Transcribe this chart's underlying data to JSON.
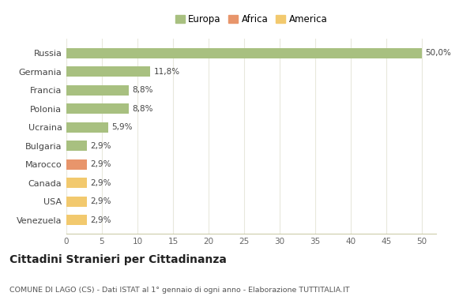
{
  "categories": [
    "Venezuela",
    "USA",
    "Canada",
    "Marocco",
    "Bulgaria",
    "Ucraina",
    "Polonia",
    "Francia",
    "Germania",
    "Russia"
  ],
  "values": [
    2.9,
    2.9,
    2.9,
    2.9,
    2.9,
    5.9,
    8.8,
    8.8,
    11.8,
    50.0
  ],
  "colors": [
    "#f2c96e",
    "#f2c96e",
    "#f2c96e",
    "#e8956b",
    "#a8c080",
    "#a8c080",
    "#a8c080",
    "#a8c080",
    "#a8c080",
    "#a8c080"
  ],
  "labels": [
    "2,9%",
    "2,9%",
    "2,9%",
    "2,9%",
    "2,9%",
    "5,9%",
    "8,8%",
    "8,8%",
    "11,8%",
    "50,0%"
  ],
  "legend": [
    {
      "label": "Europa",
      "color": "#a8c080"
    },
    {
      "label": "Africa",
      "color": "#e8956b"
    },
    {
      "label": "America",
      "color": "#f2c96e"
    }
  ],
  "title": "Cittadini Stranieri per Cittadinanza",
  "subtitle": "COMUNE DI LAGO (CS) - Dati ISTAT al 1° gennaio di ogni anno - Elaborazione TUTTITALIA.IT",
  "xlim": [
    0,
    52
  ],
  "xticks": [
    0,
    5,
    10,
    15,
    20,
    25,
    30,
    35,
    40,
    45,
    50
  ],
  "background_color": "#ffffff",
  "grid_color": "#e8e8dc",
  "bar_height": 0.55
}
